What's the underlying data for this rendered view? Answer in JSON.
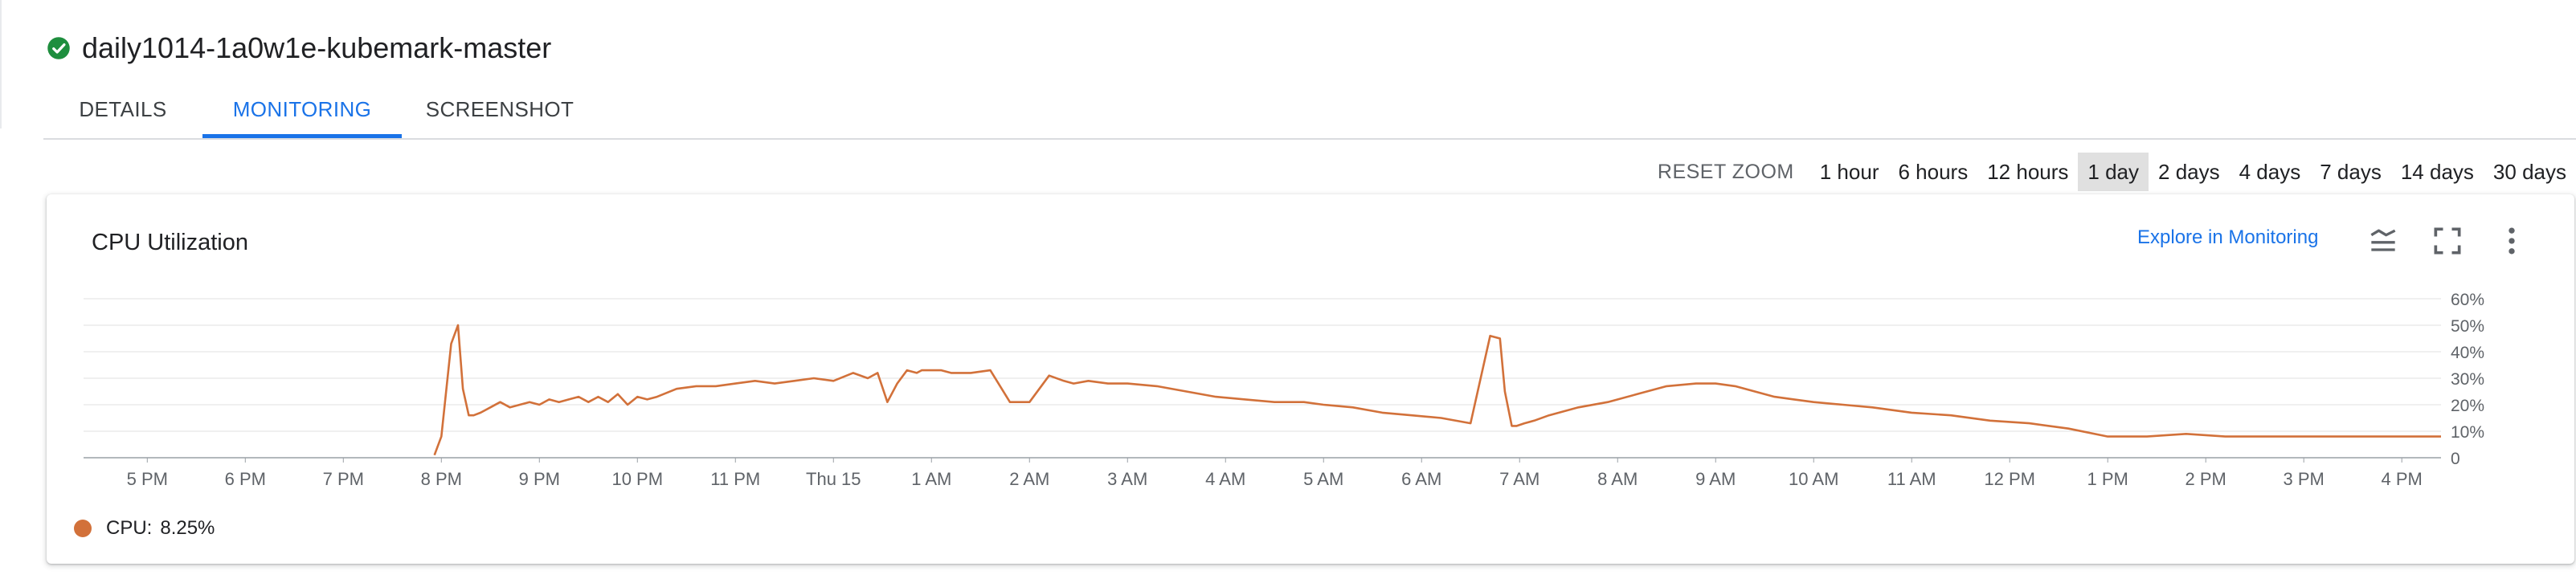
{
  "header": {
    "title": "daily1014-1a0w1e-kubemark-master",
    "status_icon": "check-circle-icon",
    "status_color": "#1e8e3e"
  },
  "tabs": [
    {
      "label": "DETAILS",
      "active": false
    },
    {
      "label": "MONITORING",
      "active": true
    },
    {
      "label": "SCREENSHOT",
      "active": false
    }
  ],
  "time_range": {
    "reset_zoom": "RESET ZOOM",
    "options": [
      "1 hour",
      "6 hours",
      "12 hours",
      "1 day",
      "2 days",
      "4 days",
      "7 days",
      "14 days",
      "30 days"
    ],
    "selected": "1 day"
  },
  "card": {
    "title": "CPU Utilization",
    "explore_link": "Explore in Monitoring",
    "icons": [
      "legend-toggle-icon",
      "fullscreen-icon",
      "more-vert-icon"
    ]
  },
  "legend": {
    "label": "CPU:",
    "value": "8.25%",
    "color": "#d2713a"
  },
  "chart_data": {
    "type": "line",
    "title": "CPU Utilization",
    "y_unit": "%",
    "ylim": [
      0,
      60
    ],
    "y_ticks": [
      "60%",
      "50%",
      "40%",
      "30%",
      "20%",
      "10%",
      "0"
    ],
    "x_ticks": [
      "5 PM",
      "6 PM",
      "7 PM",
      "8 PM",
      "9 PM",
      "10 PM",
      "11 PM",
      "Thu 15",
      "1 AM",
      "2 AM",
      "3 AM",
      "4 AM",
      "5 AM",
      "6 AM",
      "7 AM",
      "8 AM",
      "9 AM",
      "10 AM",
      "11 AM",
      "12 PM",
      "1 PM",
      "2 PM",
      "3 PM",
      "4 PM"
    ],
    "xlim_hours": [
      -0.65,
      23.4
    ],
    "grid": true,
    "series": [
      {
        "name": "CPU",
        "color": "#d2713a",
        "x_hours": [
          2.93,
          3.0,
          3.1,
          3.17,
          3.22,
          3.28,
          3.33,
          3.4,
          3.5,
          3.6,
          3.7,
          3.8,
          3.9,
          4.0,
          4.1,
          4.2,
          4.3,
          4.4,
          4.5,
          4.6,
          4.7,
          4.8,
          4.9,
          5.0,
          5.1,
          5.2,
          5.4,
          5.6,
          5.8,
          6.0,
          6.2,
          6.4,
          6.6,
          6.8,
          7.0,
          7.2,
          7.35,
          7.45,
          7.55,
          7.65,
          7.75,
          7.85,
          7.9,
          8.0,
          8.1,
          8.2,
          8.4,
          8.6,
          8.8,
          8.9,
          9.0,
          9.2,
          9.35,
          9.45,
          9.6,
          9.8,
          10.0,
          10.3,
          10.6,
          10.9,
          11.2,
          11.5,
          11.8,
          12.0,
          12.3,
          12.6,
          12.9,
          13.2,
          13.5,
          13.7,
          13.8,
          13.85,
          13.92,
          13.97,
          14.05,
          14.15,
          14.3,
          14.6,
          14.9,
          15.2,
          15.5,
          15.8,
          16.0,
          16.2,
          16.4,
          16.6,
          16.8,
          17.0,
          17.3,
          17.6,
          18.0,
          18.4,
          18.8,
          19.2,
          19.6,
          20.0,
          20.4,
          20.8,
          21.2,
          21.5,
          21.8,
          22.0,
          22.3,
          22.6,
          23.0,
          23.4
        ],
        "values": [
          1,
          8,
          43,
          50,
          26,
          16,
          16,
          17,
          19,
          21,
          19,
          20,
          21,
          20,
          22,
          21,
          22,
          23,
          21,
          23,
          21,
          24,
          20,
          23,
          22,
          23,
          26,
          27,
          27,
          28,
          29,
          28,
          29,
          30,
          29,
          32,
          30,
          32,
          21,
          28,
          33,
          32,
          33,
          33,
          33,
          32,
          32,
          33,
          21,
          21,
          21,
          31,
          29,
          28,
          29,
          28,
          28,
          27,
          25,
          23,
          22,
          21,
          21,
          20,
          19,
          17,
          16,
          15,
          13,
          46,
          45,
          25,
          12,
          12,
          13,
          14,
          16,
          19,
          21,
          24,
          27,
          28,
          28,
          27,
          25,
          23,
          22,
          21,
          20,
          19,
          17,
          16,
          14,
          13,
          11,
          8,
          8,
          9,
          8,
          8,
          8,
          8,
          8,
          8,
          8,
          8
        ]
      }
    ]
  }
}
